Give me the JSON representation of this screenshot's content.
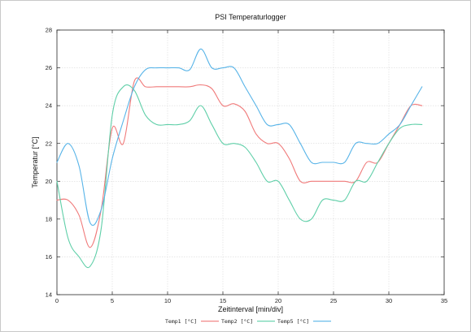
{
  "chart_data": {
    "type": "line",
    "title": "PSI Temperaturlogger",
    "xlabel": "Zeitinterval [min/div]",
    "ylabel": "Temperatur [°C]",
    "xlim": [
      0,
      35
    ],
    "ylim": [
      14,
      28
    ],
    "xticks": [
      0,
      5,
      10,
      15,
      20,
      25,
      30,
      35
    ],
    "yticks": [
      14,
      16,
      18,
      20,
      22,
      24,
      26,
      28
    ],
    "grid": true,
    "legend": "bottom",
    "x": [
      0,
      1,
      2,
      3,
      4,
      5,
      6,
      7,
      8,
      9,
      10,
      11,
      12,
      13,
      14,
      15,
      16,
      17,
      18,
      19,
      20,
      21,
      22,
      23,
      24,
      25,
      26,
      27,
      28,
      29,
      30,
      31,
      32,
      33
    ],
    "series": [
      {
        "name": "Temp1 [°C]",
        "color": "#f07a7a",
        "values": [
          19,
          19,
          18.2,
          16.5,
          18.5,
          22.8,
          22,
          25.3,
          25,
          25,
          25,
          25,
          25,
          25.1,
          24.9,
          24,
          24.1,
          23.7,
          22.5,
          22,
          22,
          21.2,
          20,
          20,
          20,
          20,
          20,
          20,
          21,
          21,
          22,
          23,
          24,
          24
        ]
      },
      {
        "name": "Temp2 [°C]",
        "color": "#5fcfa8",
        "values": [
          20,
          17,
          16,
          15.5,
          17.5,
          23.5,
          25,
          24.8,
          23.5,
          23,
          23,
          23,
          23.2,
          24,
          23,
          22,
          22,
          21.8,
          21,
          20,
          20,
          19,
          18,
          18,
          19,
          19,
          19,
          20,
          20,
          21,
          22,
          22.8,
          23,
          23
        ]
      },
      {
        "name": "Temp5 [°C]",
        "color": "#58b4e8",
        "values": [
          21,
          22,
          20.8,
          17.8,
          18.5,
          21.2,
          23.2,
          25,
          25.9,
          26,
          26,
          26,
          25.9,
          27,
          26,
          26,
          26,
          25,
          24,
          23,
          23,
          23,
          22,
          21,
          21,
          21,
          21,
          22,
          22,
          22,
          22.5,
          23,
          24,
          25
        ]
      }
    ]
  }
}
